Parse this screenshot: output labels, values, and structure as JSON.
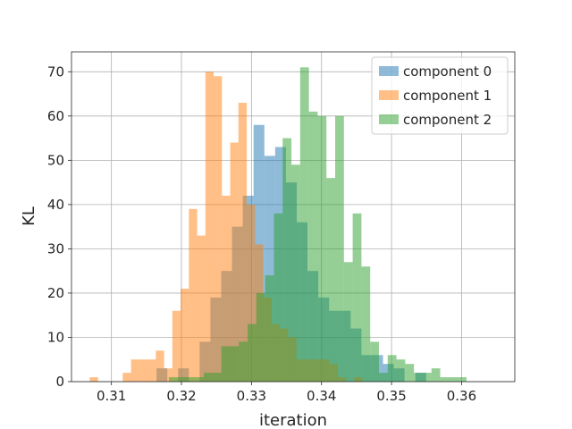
{
  "chart_data": {
    "type": "histogram",
    "xlabel": "iteration",
    "ylabel": "KL",
    "xlim": [
      0.3043,
      0.3676
    ],
    "ylim": [
      0,
      74.5
    ],
    "xticks": [
      0.31,
      0.32,
      0.33,
      0.34,
      0.35,
      0.36
    ],
    "xtick_labels": [
      "0.31",
      "0.32",
      "0.33",
      "0.34",
      "0.35",
      "0.36"
    ],
    "yticks": [
      0,
      10,
      20,
      30,
      40,
      50,
      60,
      70
    ],
    "ytick_labels": [
      "0",
      "10",
      "20",
      "30",
      "40",
      "50",
      "60",
      "70"
    ],
    "grid": true,
    "legend_position": "top-right",
    "series": [
      {
        "name": "component 0",
        "color": "#1f77b4",
        "opacity": 0.5,
        "bin_start": 0.3149,
        "bin_width": 0.00154,
        "counts": [
          0,
          3,
          0,
          3,
          0,
          9,
          19,
          25,
          35,
          42,
          58,
          51,
          53,
          45,
          36,
          25,
          19,
          16,
          16,
          12,
          6,
          6,
          4,
          3,
          0,
          2
        ]
      },
      {
        "name": "component 1",
        "color": "#ff7f0e",
        "opacity": 0.5,
        "bin_start": 0.3069,
        "bin_width": 0.00118,
        "counts": [
          1,
          0,
          0,
          0,
          2,
          5,
          5,
          5,
          7,
          3,
          16,
          21,
          39,
          33,
          70,
          69,
          42,
          54,
          63,
          40,
          31,
          19,
          13,
          12,
          10,
          5,
          5,
          5,
          5,
          4,
          1,
          0,
          1
        ]
      },
      {
        "name": "component 2",
        "color": "#2ca02c",
        "opacity": 0.5,
        "bin_start": 0.3182,
        "bin_width": 0.00125,
        "counts": [
          1,
          1,
          1,
          1,
          2,
          2,
          8,
          8,
          9,
          13,
          20,
          24,
          38,
          55,
          49,
          71,
          61,
          60,
          46,
          60,
          27,
          38,
          26,
          9,
          2,
          6,
          5,
          4,
          2,
          2,
          3,
          1,
          1,
          1
        ]
      }
    ]
  }
}
